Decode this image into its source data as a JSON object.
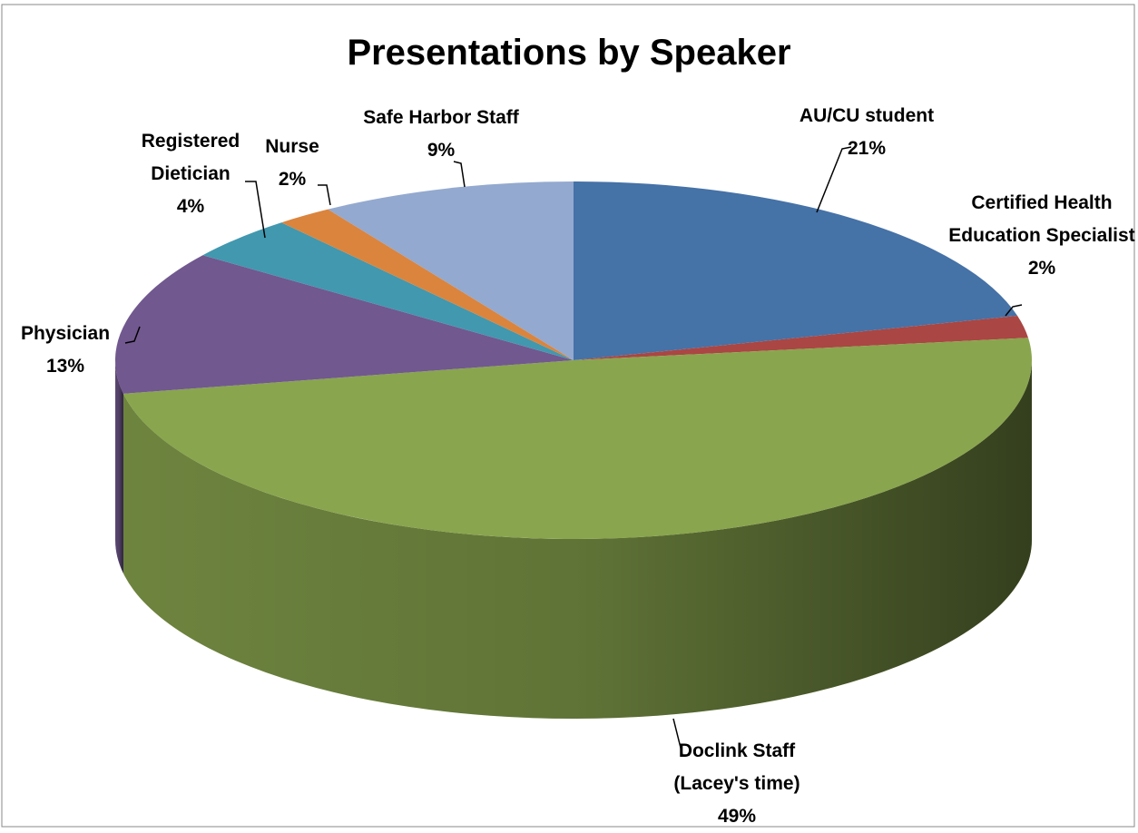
{
  "chart_data": {
    "type": "pie3d",
    "title": "Presentations by Speaker",
    "categories": [
      "AU/CU student",
      "Certified Health Education Specialist",
      "Doclink Staff (Lacey's time)",
      "Physician",
      "Registered Dietician",
      "Nurse",
      "Safe Harbor Staff"
    ],
    "values": [
      21,
      2,
      49,
      13,
      4,
      2,
      9
    ],
    "value_labels": [
      "21%",
      "2%",
      "49%",
      "13%",
      "4%",
      "2%",
      "9%"
    ],
    "colors": [
      "#4572a7",
      "#aa4643",
      "#89a54e",
      "#71588f",
      "#4198af",
      "#db843d",
      "#93a9cf"
    ]
  }
}
